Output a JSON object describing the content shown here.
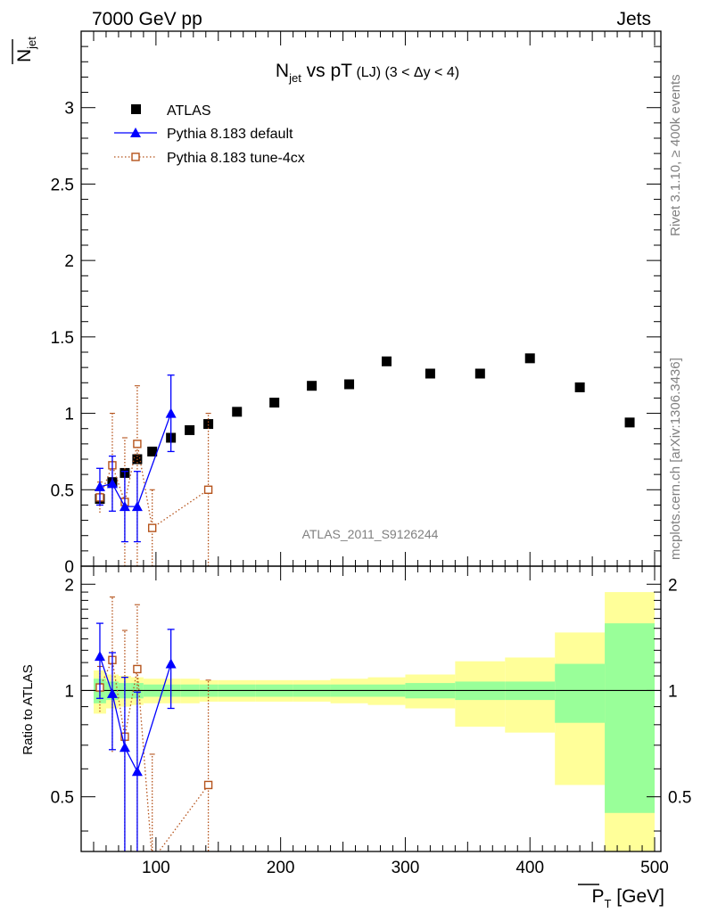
{
  "header": {
    "left": "7000 GeV pp",
    "right": "Jets"
  },
  "side_text": {
    "rivet": "Rivet 3.1.10, ≥ 400k events",
    "mcplots": "mcplots.cern.ch [arXiv:1306.3436]"
  },
  "colors": {
    "atlas": "#000000",
    "pythia_default": "#0000ff",
    "pythia_tune": "#b5531b",
    "band_inner": "#99ff99",
    "band_outer": "#ffff99"
  },
  "chart_data": {
    "type": "scatter",
    "title": {
      "main": "N",
      "sub": "jet",
      "rest": " vs pT",
      "small": " (LJ) (3 < Δy < 4)"
    },
    "watermark": "ATLAS_2011_S9126244",
    "ylabel_top": {
      "main": "N",
      "sub": "jet"
    },
    "ylabel_bottom": "Ratio to ATLAS",
    "xlabel": {
      "main": "P",
      "sub": "T",
      "unit": " [GeV]"
    },
    "xlim": [
      40,
      505
    ],
    "ylim_top": [
      0,
      3.5
    ],
    "ylim_bottom": [
      0.35,
      2.25
    ],
    "x_ticks": [
      100,
      200,
      300,
      400,
      500
    ],
    "x_tick_labels": [
      "100",
      "200",
      "300",
      "400",
      "500"
    ],
    "y_ticks_top": [
      0,
      0.5,
      1,
      1.5,
      2,
      2.5,
      3
    ],
    "y_tick_labels_top": [
      "0",
      "0.5",
      "1",
      "1.5",
      "2",
      "2.5",
      "3"
    ],
    "y_ticks_bottom": [
      0.5,
      1,
      2
    ],
    "y_tick_labels_bottom": [
      "0.5",
      "1",
      "2"
    ],
    "legend": {
      "position": "top-left",
      "entries": [
        "ATLAS",
        "Pythia 8.183 default",
        "Pythia 8.183 tune-4cx"
      ]
    },
    "series": [
      {
        "name": "ATLAS",
        "marker": "square",
        "x": [
          55,
          65,
          75,
          85,
          97,
          112,
          127,
          142,
          165,
          195,
          225,
          255,
          285,
          320,
          360,
          400,
          440,
          480
        ],
        "values": [
          0.44,
          0.55,
          0.61,
          0.7,
          0.75,
          0.84,
          0.89,
          0.93,
          1.01,
          1.07,
          1.18,
          1.19,
          1.34,
          1.26,
          1.26,
          1.36,
          1.17,
          0.94
        ]
      },
      {
        "name": "Pythia 8.183 default",
        "marker": "triangle",
        "x": [
          55,
          65,
          75,
          85,
          112
        ],
        "values": [
          0.52,
          0.54,
          0.39,
          0.39,
          1.0
        ],
        "err": [
          0.12,
          0.18,
          0.23,
          0.23,
          0.25
        ]
      },
      {
        "name": "Pythia 8.183 tune-4cx",
        "marker": "open-square",
        "x": [
          55,
          65,
          75,
          85,
          97,
          142
        ],
        "values": [
          0.45,
          0.66,
          0.42,
          0.8,
          0.25,
          0.5
        ],
        "err_low": [
          0.1,
          0.3,
          0.42,
          0.8,
          0.25,
          0.5
        ],
        "err_high": [
          0.1,
          0.34,
          0.42,
          0.38,
          0.25,
          0.5
        ]
      }
    ],
    "ratio_series": [
      {
        "name": "Pythia 8.183 default",
        "x": [
          55,
          65,
          75,
          85,
          112
        ],
        "values": [
          1.25,
          0.98,
          0.69,
          0.59,
          1.19
        ],
        "err": [
          0.3,
          0.3,
          0.4,
          0.4,
          0.3
        ]
      },
      {
        "name": "Pythia 8.183 tune-4cx",
        "x": [
          55,
          65,
          75,
          85,
          97,
          142
        ],
        "values": [
          1.02,
          1.22,
          0.74,
          1.15,
          0.33,
          0.54
        ],
        "err_low": [
          0.15,
          0.55,
          0.74,
          1.15,
          0.33,
          0.54
        ],
        "err_high": [
          0.15,
          0.62,
          0.74,
          0.6,
          0.33,
          0.53
        ]
      }
    ],
    "uncertainty_bands": [
      {
        "x_lo": 50,
        "x_hi": 60,
        "inner": [
          0.92,
          1.08
        ],
        "outer": [
          0.86,
          1.14
        ]
      },
      {
        "x_lo": 60,
        "x_hi": 70,
        "inner": [
          0.94,
          1.06
        ],
        "outer": [
          0.89,
          1.11
        ]
      },
      {
        "x_lo": 70,
        "x_hi": 80,
        "inner": [
          0.95,
          1.05
        ],
        "outer": [
          0.9,
          1.1
        ]
      },
      {
        "x_lo": 80,
        "x_hi": 90,
        "inner": [
          0.95,
          1.05
        ],
        "outer": [
          0.91,
          1.09
        ]
      },
      {
        "x_lo": 90,
        "x_hi": 105,
        "inner": [
          0.96,
          1.04
        ],
        "outer": [
          0.92,
          1.08
        ]
      },
      {
        "x_lo": 105,
        "x_hi": 120,
        "inner": [
          0.96,
          1.04
        ],
        "outer": [
          0.92,
          1.08
        ]
      },
      {
        "x_lo": 120,
        "x_hi": 135,
        "inner": [
          0.96,
          1.04
        ],
        "outer": [
          0.92,
          1.08
        ]
      },
      {
        "x_lo": 135,
        "x_hi": 150,
        "inner": [
          0.96,
          1.04
        ],
        "outer": [
          0.93,
          1.07
        ]
      },
      {
        "x_lo": 150,
        "x_hi": 180,
        "inner": [
          0.96,
          1.04
        ],
        "outer": [
          0.93,
          1.07
        ]
      },
      {
        "x_lo": 180,
        "x_hi": 210,
        "inner": [
          0.96,
          1.04
        ],
        "outer": [
          0.93,
          1.07
        ]
      },
      {
        "x_lo": 210,
        "x_hi": 240,
        "inner": [
          0.96,
          1.04
        ],
        "outer": [
          0.93,
          1.07
        ]
      },
      {
        "x_lo": 240,
        "x_hi": 270,
        "inner": [
          0.96,
          1.04
        ],
        "outer": [
          0.92,
          1.08
        ]
      },
      {
        "x_lo": 270,
        "x_hi": 300,
        "inner": [
          0.96,
          1.04
        ],
        "outer": [
          0.91,
          1.09
        ]
      },
      {
        "x_lo": 300,
        "x_hi": 340,
        "inner": [
          0.95,
          1.05
        ],
        "outer": [
          0.89,
          1.11
        ]
      },
      {
        "x_lo": 340,
        "x_hi": 380,
        "inner": [
          0.94,
          1.06
        ],
        "outer": [
          0.79,
          1.21
        ]
      },
      {
        "x_lo": 380,
        "x_hi": 420,
        "inner": [
          0.94,
          1.06
        ],
        "outer": [
          0.76,
          1.24
        ]
      },
      {
        "x_lo": 420,
        "x_hi": 460,
        "inner": [
          0.81,
          1.19
        ],
        "outer": [
          0.54,
          1.46
        ]
      },
      {
        "x_lo": 460,
        "x_hi": 500,
        "inner": [
          0.45,
          1.55
        ],
        "outer": [
          0.1,
          1.9
        ]
      }
    ]
  }
}
